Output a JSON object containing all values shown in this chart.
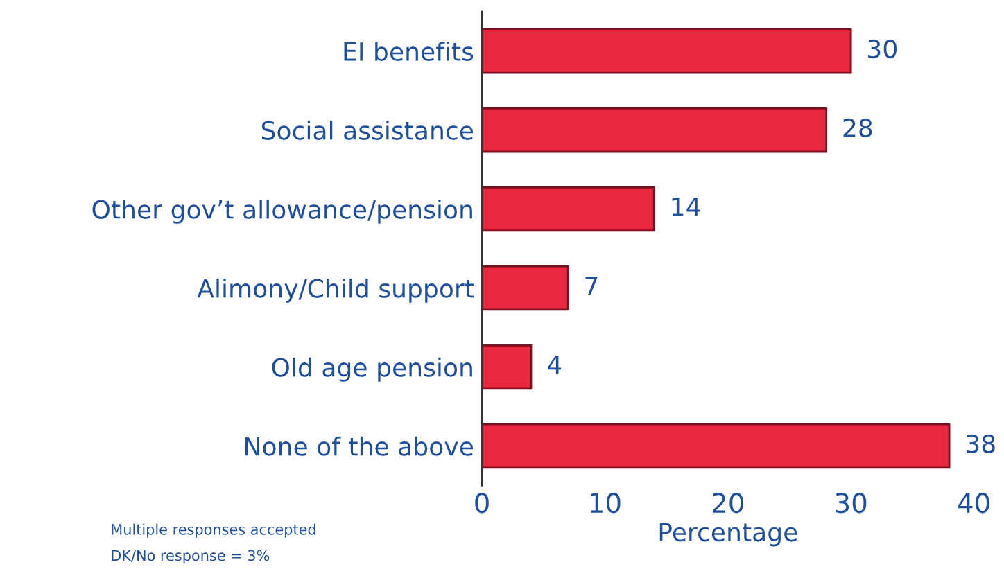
{
  "chart_data": {
    "type": "bar",
    "orientation": "horizontal",
    "xlabel": "Percentage",
    "categories": [
      "EI benefits",
      "Social assistance",
      "Other gov’t allowance/pension",
      "Alimony/Child support",
      "Old age pension",
      "None of the above"
    ],
    "values": [
      30,
      28,
      14,
      7,
      4,
      38
    ],
    "color": "#e8283f",
    "data_labels": true,
    "xlim": [
      0,
      40
    ],
    "xticks": [
      0,
      10,
      20,
      30,
      40
    ],
    "grid": false,
    "annotations": [
      "Multiple responses accepted",
      "DK/No response = 3%"
    ]
  }
}
